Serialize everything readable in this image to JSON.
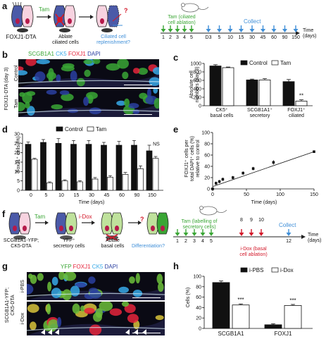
{
  "panels": {
    "a": {
      "letter": "a",
      "model": "FOXJ1-DTA",
      "tam": "Tam",
      "ablate": [
        "Ablate",
        "ciliated cells"
      ],
      "question": [
        "Ciliated cell",
        "replenishment?"
      ],
      "mark": "?",
      "timeline_top": [
        "Tam (ciliated",
        "cell ablation)"
      ],
      "collect": "Collect",
      "time_label": [
        "Time",
        "(days)"
      ],
      "tam_days": [
        "1",
        "2",
        "3",
        "4",
        "5"
      ],
      "collect_days": [
        "D3",
        "5",
        "10",
        "15",
        "30",
        "45",
        "60",
        "90",
        "150"
      ]
    },
    "b": {
      "letter": "b",
      "legend": [
        "SCGB1A1",
        "CK5",
        "FOXJ1",
        "DAPI"
      ],
      "side": "FOXJ1-DTA (day 3)",
      "rows": [
        "Control",
        "Tam"
      ]
    },
    "c": {
      "letter": "c",
      "ylabel": [
        "Absolute cell",
        "numbers (day 3)"
      ],
      "legend": [
        "Control",
        "Tam"
      ],
      "sig": "**",
      "xgroups": [
        [
          "CK5⁺",
          "basal cells"
        ],
        [
          "SCGB1A1⁺",
          "secretory"
        ],
        [
          "FOXJ1⁺",
          "ciliated"
        ]
      ]
    },
    "d": {
      "letter": "d",
      "ylabel": "FoxJ1⁺ cells (%)",
      "xlabel": "Time (days)",
      "legend": [
        "Control",
        "Tam"
      ],
      "ns": "NS"
    },
    "e": {
      "letter": "e",
      "ylabel": [
        "FOXJ1⁺ cells per",
        "total DAPI⁺ cells (%)",
        "relative to control"
      ],
      "xlabel": "Time (days)"
    },
    "f": {
      "letter": "f",
      "model": [
        "SCGB1A1-YFP;",
        "CK5-DTA"
      ],
      "tam": "Tam",
      "idox": "i-Dox",
      "yfp": [
        "YFP⁺",
        "secretory cells"
      ],
      "ablate": [
        "Ablate",
        "basal cells"
      ],
      "diff": "Differentiation?",
      "mark": "?",
      "timeline_top": [
        "Tam (labelling of",
        "secretory cells)"
      ],
      "tam_days": [
        "1",
        "2",
        "3",
        "4",
        "5"
      ],
      "dox_days": [
        "8",
        "9",
        "10"
      ],
      "dox_label": [
        "i-Dox (basal",
        "cell ablation)"
      ],
      "collect": "Collect",
      "collect_day": "12",
      "time_label": [
        "Time",
        "(days)"
      ]
    },
    "g": {
      "letter": "g",
      "legend": [
        "YFP",
        "FOXJ1",
        "CK5",
        "DAPI"
      ],
      "side": [
        "SCGB1A1-YFP;",
        "CK5-DTA"
      ],
      "rows": [
        "i-PBS",
        "i-Dox"
      ]
    },
    "h": {
      "letter": "h",
      "ylabel": "Cells (%)",
      "legend": [
        "i-PBS",
        "i-Dox"
      ],
      "sig": [
        "***",
        "***"
      ]
    }
  },
  "colors": {
    "green": "#3aa635",
    "blue": "#3f8fd8",
    "red": "#d3192a",
    "ck5": "#37a9e8",
    "foxj1": "#e5243b",
    "gray": "#a5a5a5"
  },
  "chart_data": [
    {
      "id": "c",
      "type": "bar",
      "categories": [
        "CK5+ basal cells",
        "SCGB1A1+ secretory",
        "FOXJ1+ ciliated"
      ],
      "series": [
        {
          "name": "Control",
          "values": [
            940,
            610,
            570
          ],
          "err": [
            30,
            20,
            50
          ]
        },
        {
          "name": "Tam",
          "values": [
            900,
            610,
            110
          ],
          "err": [
            15,
            30,
            30
          ]
        }
      ],
      "ylim": [
        0,
        1000
      ],
      "yticks": [
        0,
        200,
        400,
        600,
        800,
        1000
      ],
      "ylabel": "Absolute cell numbers (day 3)",
      "legend_position": "top-right"
    },
    {
      "id": "d",
      "type": "bar",
      "categories": [
        "0",
        "5",
        "10",
        "15",
        "30",
        "45",
        "60",
        "90",
        "150"
      ],
      "series": [
        {
          "name": "Control",
          "values": [
            24.5,
            25.5,
            25,
            24.5,
            24.5,
            24,
            24,
            24,
            21
          ],
          "err": [
            1.2,
            1.5,
            2.5,
            2,
            2,
            1.5,
            2,
            2.5,
            3
          ]
        },
        {
          "name": "Tam",
          "values": [
            16.5,
            4,
            5,
            4.5,
            6,
            7,
            8.5,
            11.5,
            17
          ],
          "err": [
            0.5,
            0.5,
            0.6,
            0.6,
            0.8,
            0.8,
            1,
            1.5,
            1
          ]
        }
      ],
      "ylim": [
        0,
        30
      ],
      "yticks": [
        0,
        5,
        10,
        15,
        20,
        25,
        30
      ],
      "ylabel": "FoxJ1+ cells (%)",
      "xlabel": "Time (days)",
      "legend_position": "top"
    },
    {
      "id": "e",
      "type": "scatter",
      "x": [
        0,
        5,
        10,
        15,
        30,
        45,
        60,
        90,
        150
      ],
      "y": [
        0,
        10,
        13,
        17,
        20,
        28,
        36,
        47,
        66
      ],
      "err": [
        1,
        3,
        3,
        3,
        3,
        3,
        3,
        4,
        2
      ],
      "trendline": [
        [
          0,
          4
        ],
        [
          150,
          66
        ]
      ],
      "xlim": [
        0,
        150
      ],
      "xticks": [
        0,
        50,
        100,
        150
      ],
      "ylim": [
        0,
        100
      ],
      "yticks": [
        0,
        20,
        40,
        60,
        80,
        100
      ],
      "ylabel": "FOXJ1+ cells per total DAPI+ cells (%) relative to control",
      "xlabel": "Time (days)"
    },
    {
      "id": "h",
      "type": "bar",
      "categories": [
        "SCGB1A1",
        "FOXJ1"
      ],
      "series": [
        {
          "name": "i-PBS",
          "values": [
            88,
            7
          ],
          "err": [
            3,
            2
          ]
        },
        {
          "name": "i-Dox",
          "values": [
            45,
            44
          ],
          "err": [
            2,
            2
          ]
        }
      ],
      "ylim": [
        0,
        100
      ],
      "yticks": [
        0,
        20,
        40,
        60,
        80,
        100
      ],
      "ylabel": "Cells (%)",
      "legend_position": "top-right"
    }
  ]
}
